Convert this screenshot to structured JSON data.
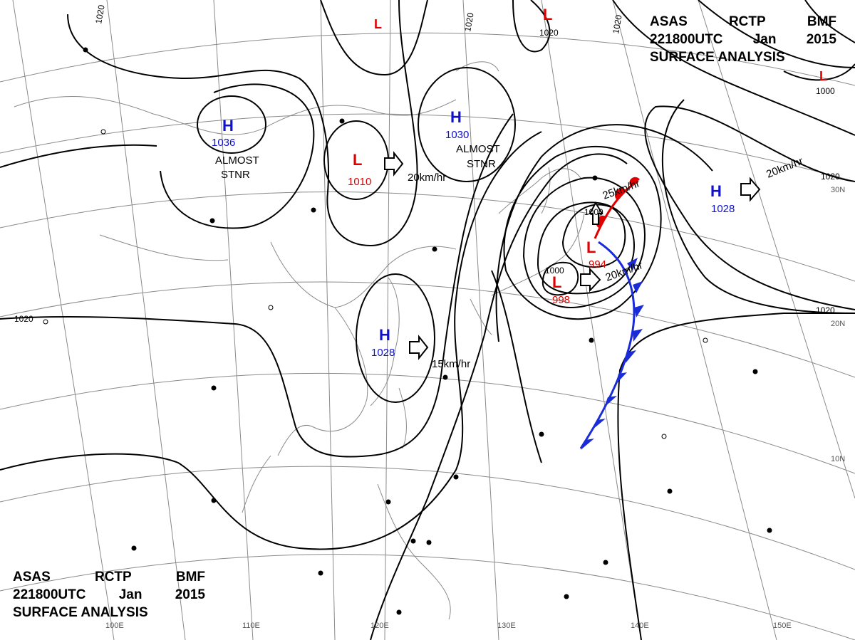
{
  "header": {
    "line1": [
      "ASAS",
      "RCTP",
      "BMF"
    ],
    "line2": [
      "221800UTC",
      "Jan",
      "2015"
    ],
    "line3": "SURFACE ANALYSIS"
  },
  "colors": {
    "high": "#1010d0",
    "low": "#e00000",
    "cold_front": "#1a2bd8",
    "warm_front": "#e00000",
    "isobar": "#000000",
    "graticule": "#888888"
  },
  "longitude_labels": [
    "100E",
    "110E",
    "120E",
    "130E",
    "140E",
    "150E"
  ],
  "latitude_labels": [
    "30N",
    "20N",
    "10N"
  ],
  "isobar_labels": [
    "1020",
    "1020",
    "1020",
    "1020",
    "1020",
    "1020",
    "1000",
    "1000",
    "1000"
  ],
  "pressure_centers": [
    {
      "type": "H",
      "value": "1036",
      "note": [
        "ALMOST",
        "STNR"
      ]
    },
    {
      "type": "H",
      "value": "1030",
      "note": [
        "ALMOST",
        "STNR"
      ]
    },
    {
      "type": "L",
      "value": "1010",
      "motion": "20km/hr"
    },
    {
      "type": "L",
      "value": "1020"
    },
    {
      "type": "L",
      "value": ""
    },
    {
      "type": "L",
      "value": ""
    },
    {
      "type": "H",
      "value": "1028",
      "motion": "15km/hr"
    },
    {
      "type": "H",
      "value": "1028",
      "motion": "20km/hr"
    },
    {
      "type": "L",
      "value": "994",
      "motion": "25km/hr"
    },
    {
      "type": "L",
      "value": "998",
      "motion": "20km/hr"
    }
  ]
}
